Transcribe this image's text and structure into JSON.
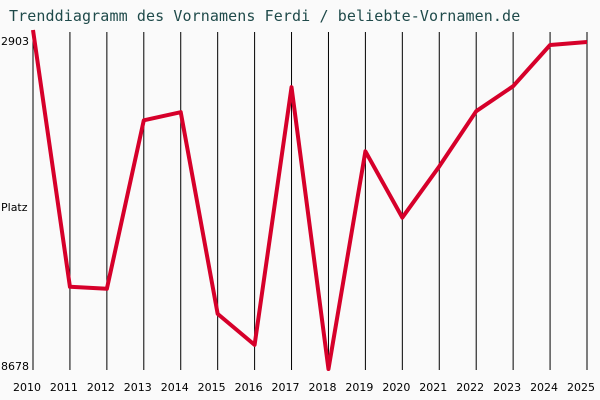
{
  "title": "Trenddiagramm des Vornamens Ferdi / beliebte-Vornamen.de",
  "y_axis": {
    "top_label": "2903",
    "mid_label": "Platz",
    "bottom_label": "8678"
  },
  "colors": {
    "line": "#d6002a",
    "grid": "#000000",
    "background": "#fafafa",
    "title": "#1f4a4a"
  },
  "chart_data": {
    "type": "line",
    "title": "Trenddiagramm des Vornamens Ferdi / beliebte-Vornamen.de",
    "xlabel": "",
    "ylabel": "Platz",
    "ylim": [
      8678,
      2903
    ],
    "y_inverted": true,
    "grid": {
      "vertical": true,
      "horizontal": false
    },
    "x": [
      "2010",
      "2011",
      "2012",
      "2013",
      "2014",
      "2015",
      "2016",
      "2017",
      "2018",
      "2019",
      "2020",
      "2021",
      "2022",
      "2023",
      "2024",
      "2025"
    ],
    "series": [
      {
        "name": "Ferdi",
        "values": [
          2903,
          7278,
          7312,
          4441,
          4304,
          7739,
          8268,
          3877,
          8678,
          4970,
          6098,
          5227,
          4287,
          3860,
          3159,
          3108
        ]
      }
    ]
  }
}
